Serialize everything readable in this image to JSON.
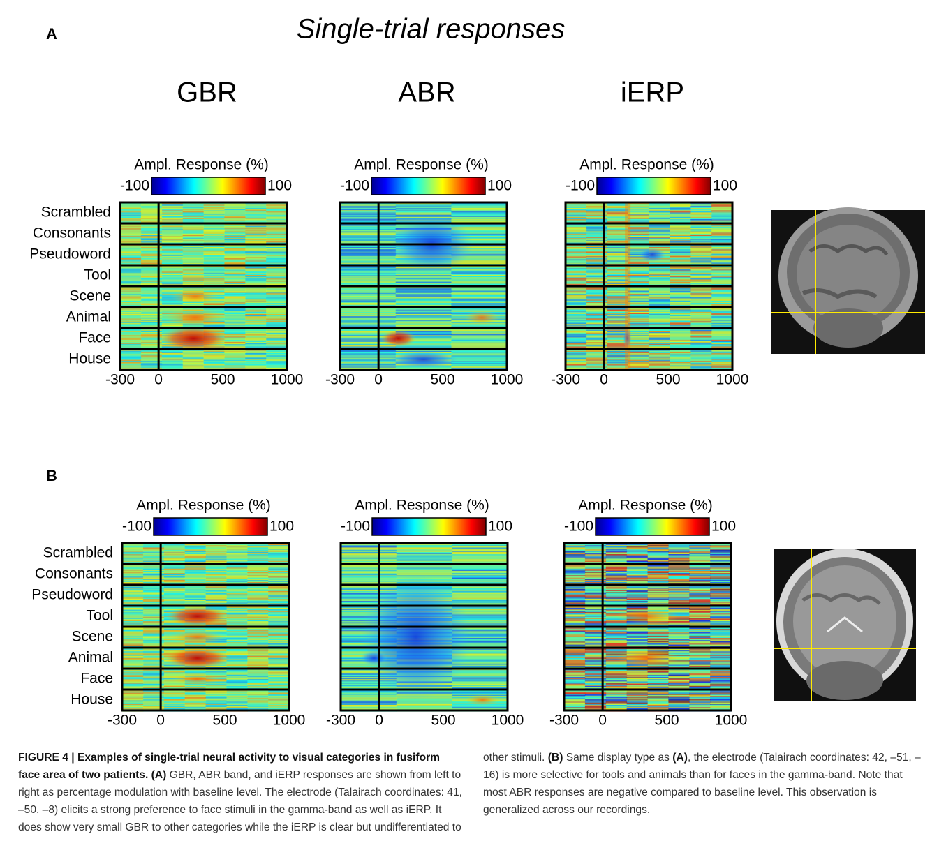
{
  "title": "Single-trial responses",
  "panels": [
    {
      "label": "A",
      "categories": [
        "Scrambled",
        "Consonants",
        "Pseudoword",
        "Tool",
        "Scene",
        "Animal",
        "Face",
        "House"
      ],
      "plots": [
        {
          "column_title": "GBR",
          "colorbar": {
            "title": "Ampl. Response (%)",
            "min": -100,
            "max": 100
          },
          "xticks": [
            -300,
            0,
            500,
            1000
          ]
        },
        {
          "column_title": "ABR",
          "colorbar": {
            "title": "Ampl. Response (%)",
            "min": -100,
            "max": 100
          },
          "xticks": [
            -300,
            0,
            500,
            1000
          ]
        },
        {
          "column_title": "iERP",
          "colorbar": {
            "title": "Ampl. Response (%)",
            "min": -100,
            "max": 100
          },
          "xticks": [
            -300,
            0,
            500,
            1000
          ]
        }
      ]
    },
    {
      "label": "B",
      "categories": [
        "Scrambled",
        "Consonants",
        "Pseudoword",
        "Tool",
        "Scene",
        "Animal",
        "Face",
        "House"
      ],
      "plots": [
        {
          "colorbar": {
            "title": "Ampl. Response (%)",
            "min": -100,
            "max": 100
          },
          "xticks": [
            -300,
            0,
            500,
            1000
          ]
        },
        {
          "colorbar": {
            "title": "Ampl. Response (%)",
            "min": -100,
            "max": 100
          },
          "xticks": [
            -300,
            0,
            500,
            1000
          ]
        },
        {
          "colorbar": {
            "title": "Ampl. Response (%)",
            "min": -100,
            "max": 100
          },
          "xticks": [
            -300,
            0,
            500,
            1000
          ]
        }
      ]
    }
  ],
  "caption": {
    "parts": [
      {
        "text": "FIGURE 4 | Examples of single-trial neural activity to visual categories in fusiform face area of two patients. ",
        "bold": true
      },
      {
        "text": "(A)",
        "bold": true
      },
      {
        "text": " GBR, ABR band, and iERP responses are shown from left to right as percentage modulation with baseline level. The electrode (Talairach coordinates: 41, –50, –8) elicits a strong preference to face stimuli in the gamma-band as well as iERP. It does show very small GBR to other categories while the iERP is clear but undifferentiated to other stimuli. ",
        "bold": false
      },
      {
        "text": "(B)",
        "bold": true
      },
      {
        "text": " Same display type as ",
        "bold": false
      },
      {
        "text": "(A)",
        "bold": true
      },
      {
        "text": ", the electrode (Talairach coordinates: 42, –51, –16) is more selective for tools and animals than for faces in the gamma-band. Note that most ABR responses are negative compared to baseline level. This observation is generalized across our recordings.",
        "bold": false
      }
    ]
  }
}
